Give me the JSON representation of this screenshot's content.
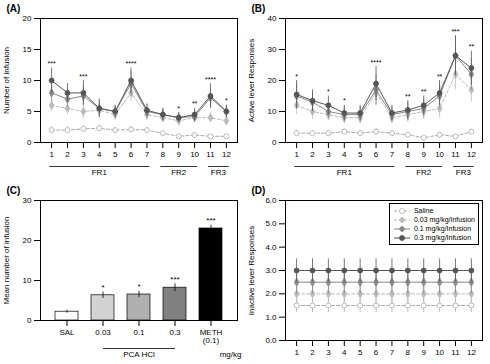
{
  "chart_data": [
    {
      "type": "line",
      "title": "(A)",
      "ylabel": "Number of infusion",
      "x": [
        1,
        2,
        3,
        4,
        5,
        6,
        7,
        8,
        9,
        10,
        11,
        12
      ],
      "xlim": [
        0.3,
        12.7
      ],
      "xticks": [
        1,
        2,
        3,
        4,
        5,
        6,
        7,
        8,
        9,
        10,
        11,
        12
      ],
      "ylim": [
        0,
        20
      ],
      "yticks": [
        0,
        5,
        10,
        15,
        20
      ],
      "grid": false,
      "series": [
        {
          "color": "#aaaaaa",
          "marker": "circle-open",
          "line_style": "dashed",
          "values": [
            2.0,
            2.0,
            2.2,
            2.3,
            2.0,
            2.1,
            2.0,
            1.5,
            1.0,
            1.2,
            1.0,
            1.0
          ],
          "errors": [
            0.5,
            0.5,
            0.5,
            0.5,
            0.4,
            0.5,
            0.4,
            0.4,
            0.3,
            0.3,
            0.3,
            0.3
          ]
        },
        {
          "color": "#bbbbbb",
          "marker": "diamond",
          "line_style": "dashed",
          "values": [
            6.0,
            5.5,
            5.0,
            5.2,
            4.5,
            8.0,
            4.5,
            4.0,
            3.5,
            4.0,
            4.0,
            3.5
          ],
          "errors": [
            1.0,
            1.0,
            1.2,
            1.0,
            1.0,
            1.5,
            1.0,
            0.8,
            0.8,
            0.8,
            0.8,
            0.8
          ]
        },
        {
          "color": "#888888",
          "marker": "diamond",
          "line_style": "solid",
          "values": [
            8.0,
            7.0,
            7.5,
            5.5,
            5.0,
            9.5,
            5.0,
            4.5,
            4.0,
            4.2,
            7.2,
            5.0
          ],
          "errors": [
            1.5,
            1.2,
            1.5,
            1.2,
            1.0,
            2.0,
            1.0,
            1.0,
            0.8,
            1.0,
            1.5,
            1.0
          ]
        },
        {
          "color": "#555555",
          "marker": "circle",
          "line_style": "solid",
          "values": [
            10.0,
            8.0,
            8.0,
            5.5,
            5.0,
            10.0,
            5.2,
            4.5,
            4.0,
            4.5,
            7.5,
            5.0
          ],
          "errors": [
            2.0,
            1.5,
            2.0,
            1.5,
            1.0,
            2.0,
            1.0,
            1.0,
            0.8,
            1.0,
            2.0,
            1.0
          ]
        }
      ],
      "brackets": [
        {
          "label": "FR1",
          "x_start": 1,
          "x_end": 7
        },
        {
          "label": "FR2",
          "x_start": 8,
          "x_end": 10
        },
        {
          "label": "FR3",
          "x_start": 11,
          "x_end": 12
        }
      ],
      "stars": [
        {
          "x": 1,
          "text": "***"
        },
        {
          "x": 3,
          "text": "***"
        },
        {
          "x": 6,
          "text": "****"
        },
        {
          "x": 9,
          "text": "*"
        },
        {
          "x": 10,
          "text": "**"
        },
        {
          "x": 11,
          "text": "****"
        },
        {
          "x": 12,
          "text": "*"
        }
      ]
    },
    {
      "type": "line",
      "title": "(B)",
      "ylabel": "Active lever Responses",
      "x": [
        1,
        2,
        3,
        4,
        5,
        6,
        7,
        8,
        9,
        10,
        11,
        12
      ],
      "xlim": [
        0.3,
        12.7
      ],
      "xticks": [
        1,
        2,
        3,
        4,
        5,
        6,
        7,
        8,
        9,
        10,
        11,
        12
      ],
      "ylim": [
        0,
        40
      ],
      "yticks": [
        0,
        10,
        20,
        30,
        40
      ],
      "grid": false,
      "series": [
        {
          "color": "#aaaaaa",
          "marker": "circle-open",
          "line_style": "dashed",
          "values": [
            3.0,
            3.0,
            3.0,
            3.5,
            3.0,
            3.5,
            3.0,
            2.5,
            1.5,
            2.5,
            2.0,
            3.5
          ],
          "errors": [
            1.0,
            0.8,
            0.8,
            0.8,
            0.8,
            1.0,
            0.8,
            0.8,
            0.5,
            0.8,
            0.5,
            0.8
          ]
        },
        {
          "color": "#bbbbbb",
          "marker": "diamond",
          "line_style": "dashed",
          "values": [
            12.0,
            10.0,
            9.0,
            8.0,
            8.0,
            16.0,
            8.0,
            9.0,
            10.0,
            11.0,
            22.0,
            17.0
          ],
          "errors": [
            3.0,
            2.5,
            2.0,
            2.0,
            2.0,
            4.0,
            2.0,
            2.5,
            2.5,
            3.0,
            5.0,
            4.0
          ]
        },
        {
          "color": "#888888",
          "marker": "diamond",
          "line_style": "solid",
          "values": [
            15.0,
            13.0,
            10.0,
            9.0,
            9.0,
            17.0,
            9.0,
            10.0,
            11.0,
            15.0,
            28.0,
            22.0
          ],
          "errors": [
            4.0,
            3.0,
            2.5,
            2.5,
            2.5,
            5.0,
            2.5,
            3.0,
            3.0,
            4.0,
            6.0,
            5.0
          ]
        },
        {
          "color": "#555555",
          "marker": "circle",
          "line_style": "solid",
          "values": [
            15.5,
            13.5,
            12.0,
            9.5,
            9.5,
            19.0,
            9.5,
            10.5,
            12.0,
            16.0,
            28.0,
            24.0
          ],
          "errors": [
            4.5,
            3.5,
            3.0,
            2.5,
            2.5,
            5.5,
            2.5,
            3.0,
            3.0,
            4.0,
            6.5,
            5.5
          ]
        }
      ],
      "brackets": [
        {
          "label": "FR1",
          "x_start": 1,
          "x_end": 7
        },
        {
          "label": "FR2",
          "x_start": 8,
          "x_end": 10
        },
        {
          "label": "FR3",
          "x_start": 11,
          "x_end": 12
        }
      ],
      "stars": [
        {
          "x": 1,
          "text": "*"
        },
        {
          "x": 3,
          "text": "*"
        },
        {
          "x": 4,
          "text": "*"
        },
        {
          "x": 6,
          "text": "****"
        },
        {
          "x": 8,
          "text": "**"
        },
        {
          "x": 9,
          "text": "**"
        },
        {
          "x": 10,
          "text": "**"
        },
        {
          "x": 11,
          "text": "***"
        },
        {
          "x": 12,
          "text": "**"
        }
      ]
    },
    {
      "type": "bar",
      "title": "(C)",
      "ylabel": "Mean number of infusion",
      "categories": [
        "SAL",
        "0.03",
        "0.1",
        "0.3",
        "METH\n(0.1)"
      ],
      "values": [
        2.2,
        6.3,
        6.5,
        8.2,
        23.0
      ],
      "errors": [
        0.4,
        0.8,
        0.8,
        1.0,
        0.8
      ],
      "colors": [
        "white",
        "#d3d3d3",
        "#b0b0b0",
        "#808080",
        "black"
      ],
      "stars": [
        null,
        "*",
        "*",
        "***",
        "***"
      ],
      "ylim": [
        0,
        30
      ],
      "yticks": [
        0,
        10,
        20,
        30
      ],
      "grid": false,
      "brackets": [
        {
          "label": "PCA HCl",
          "start": "0.03",
          "end": "0.3"
        }
      ],
      "annotations": [
        "mg/kg"
      ]
    },
    {
      "type": "line",
      "title": "(D)",
      "ylabel": "Inactive lever Responses",
      "x": [
        1,
        2,
        3,
        4,
        5,
        6,
        7,
        8,
        9,
        10,
        11,
        12
      ],
      "xlim": [
        0.3,
        12.7
      ],
      "xticks": [
        1,
        2,
        3,
        4,
        5,
        6,
        7,
        8,
        9,
        10,
        11,
        12
      ],
      "ylim": [
        0,
        6
      ],
      "yticks": [
        0,
        1,
        2,
        3,
        4,
        5,
        6
      ],
      "grid": false,
      "legend": "upper right",
      "series": [
        {
          "name": "Saline",
          "color": "#aaaaaa",
          "marker": "circle-open",
          "line_style": "dashed",
          "values": [
            1.5,
            1.5,
            1.5,
            1.5,
            1.5,
            1.5,
            1.5,
            1.5,
            1.5,
            1.5,
            1.5,
            1.5
          ],
          "errors": [
            0.3,
            0.3,
            0.3,
            0.3,
            0.3,
            0.3,
            0.3,
            0.3,
            0.3,
            0.3,
            0.3,
            0.3
          ]
        },
        {
          "name": "0.03 mg/kg/Infusion",
          "color": "#bbbbbb",
          "marker": "diamond",
          "line_style": "dashed",
          "values": [
            2.0,
            2.0,
            2.0,
            2.0,
            2.0,
            2.0,
            2.0,
            2.0,
            2.0,
            2.0,
            2.0,
            2.0
          ],
          "errors": [
            0.4,
            0.4,
            0.4,
            0.4,
            0.4,
            0.4,
            0.4,
            0.4,
            0.4,
            0.4,
            0.4,
            0.4
          ]
        },
        {
          "name": "0.1 mg/kg/Infusion",
          "color": "#888888",
          "marker": "diamond",
          "line_style": "solid",
          "values": [
            2.5,
            2.5,
            2.5,
            2.5,
            2.5,
            2.5,
            2.5,
            2.5,
            2.5,
            2.5,
            2.5,
            2.5
          ],
          "errors": [
            0.5,
            0.5,
            0.5,
            0.5,
            0.5,
            0.5,
            0.5,
            0.5,
            0.5,
            0.5,
            0.5,
            0.5
          ]
        },
        {
          "name": "0.3 mg/kg/Infusion",
          "color": "#555555",
          "marker": "circle",
          "line_style": "solid",
          "values": [
            3.0,
            3.0,
            3.0,
            3.0,
            3.0,
            3.0,
            3.0,
            3.0,
            3.0,
            3.0,
            3.0,
            3.0
          ],
          "errors": [
            0.5,
            0.5,
            0.5,
            0.5,
            0.5,
            0.5,
            0.5,
            0.5,
            0.5,
            0.5,
            0.5,
            0.5
          ]
        }
      ]
    }
  ]
}
